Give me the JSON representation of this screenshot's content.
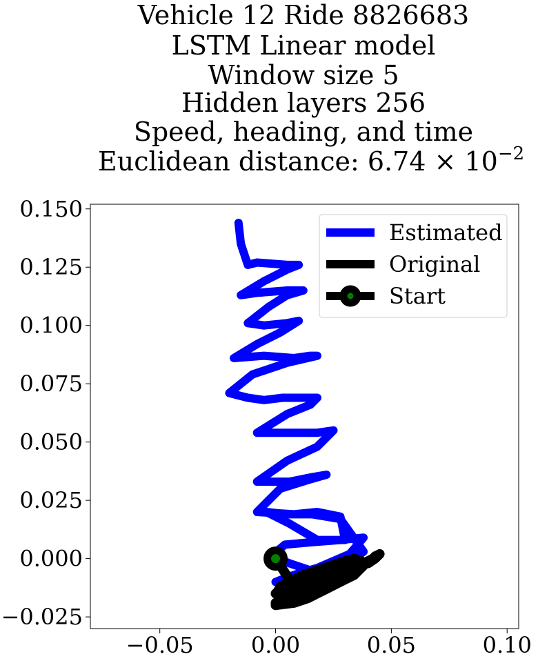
{
  "chart_data": {
    "type": "line",
    "title_lines": [
      "Vehicle 12 Ride 8826683",
      "LSTM Linear model",
      "Window size 5",
      "Hidden layers 256",
      "Speed, heading, and time",
      "Euclidean distance: 6.74 × 10",
      "−2"
    ],
    "xlim": [
      -0.08,
      0.105
    ],
    "ylim": [
      -0.03,
      0.152
    ],
    "x_ticks": [
      -0.05,
      0.0,
      0.05,
      0.1
    ],
    "x_tick_labels": [
      "−0.05",
      "0.00",
      "0.05",
      "0.10"
    ],
    "y_ticks": [
      0.15,
      0.125,
      0.1,
      0.075,
      0.05,
      0.025,
      0.0,
      -0.025
    ],
    "y_tick_labels": [
      "0.150",
      "0.125",
      "0.100",
      "0.075",
      "0.050",
      "0.025",
      "0.000",
      "−0.025"
    ],
    "legend_placement": "top-right",
    "series": [
      {
        "name": "Estimated",
        "color": "#0000ff",
        "x": [
          0.0,
          0.005,
          0.011,
          0.018,
          0.025,
          0.032,
          0.038,
          0.028,
          0.015,
          0.004,
          -0.002,
          0.006,
          0.018,
          0.03,
          0.038,
          0.028,
          0.016,
          0.005,
          -0.004,
          0.006,
          0.018,
          0.03,
          0.028,
          0.018,
          0.008,
          -0.008,
          0.002,
          0.015,
          0.022,
          0.016,
          0.006,
          -0.008,
          0.005,
          0.018,
          0.025,
          0.018,
          0.008,
          -0.008,
          0.005,
          0.015,
          0.018,
          0.012,
          0.003,
          -0.005,
          -0.012,
          -0.02,
          -0.01,
          0.005,
          0.018,
          0.015,
          0.008,
          -0.005,
          -0.018,
          -0.008,
          0.002,
          0.01,
          0.005,
          -0.005,
          -0.012,
          -0.003,
          0.005,
          0.012,
          0.005,
          -0.008,
          -0.015,
          -0.005,
          0.005,
          0.01,
          0.005,
          -0.008,
          -0.012,
          -0.015,
          -0.016
        ],
        "y": [
          -0.01,
          -0.008,
          -0.006,
          -0.004,
          -0.001,
          0.002,
          0.009,
          0.008,
          0.007,
          0.006,
          0.001,
          -0.002,
          -0.006,
          -0.003,
          0.003,
          0.017,
          0.019,
          0.019,
          0.02,
          0.015,
          0.008,
          0.008,
          0.018,
          0.02,
          0.019,
          0.02,
          0.03,
          0.034,
          0.036,
          0.035,
          0.033,
          0.033,
          0.042,
          0.048,
          0.055,
          0.054,
          0.054,
          0.054,
          0.062,
          0.066,
          0.069,
          0.069,
          0.069,
          0.068,
          0.069,
          0.071,
          0.079,
          0.084,
          0.087,
          0.087,
          0.086,
          0.087,
          0.086,
          0.092,
          0.097,
          0.102,
          0.101,
          0.1,
          0.101,
          0.108,
          0.113,
          0.115,
          0.115,
          0.114,
          0.113,
          0.119,
          0.124,
          0.126,
          0.126,
          0.127,
          0.126,
          0.135,
          0.144
        ]
      },
      {
        "name": "Original",
        "color": "#000000",
        "x": [
          0.0,
          0.002,
          0.004,
          0.006,
          0.008,
          0.01,
          0.012,
          0.014,
          0.015,
          0.014,
          0.012,
          0.009,
          0.005,
          0.0,
          0.0,
          0.0,
          0.008,
          0.014,
          0.018,
          0.022,
          0.026,
          0.03,
          0.032,
          0.034,
          0.036,
          0.038,
          0.04,
          0.042,
          0.043,
          0.045,
          0.043,
          0.04,
          0.036,
          0.03,
          0.024,
          0.018,
          0.012,
          0.007,
          0.003,
          0.001,
          0.004,
          0.008,
          0.014,
          0.02,
          0.026,
          0.032,
          0.036,
          0.038,
          0.037,
          0.034,
          0.03,
          0.024,
          0.018,
          0.012,
          0.006,
          0.002,
          0.001,
          0.0,
          0.002,
          0.008,
          0.016,
          0.024,
          0.03,
          0.034,
          0.036,
          0.036,
          0.034,
          0.03,
          0.024,
          0.016,
          0.008,
          0.002
        ],
        "y": [
          0.0,
          -0.003,
          -0.006,
          -0.009,
          -0.011,
          -0.012,
          -0.013,
          -0.014,
          -0.015,
          -0.015,
          -0.016,
          -0.017,
          -0.018,
          -0.019,
          -0.019,
          -0.02,
          -0.019,
          -0.017,
          -0.015,
          -0.013,
          -0.011,
          -0.009,
          -0.008,
          -0.006,
          -0.004,
          -0.002,
          -0.001,
          0.0,
          0.001,
          0.002,
          0.0,
          -0.002,
          -0.003,
          -0.004,
          -0.006,
          -0.008,
          -0.01,
          -0.012,
          -0.014,
          -0.016,
          -0.016,
          -0.015,
          -0.013,
          -0.011,
          -0.009,
          -0.007,
          -0.005,
          -0.003,
          -0.001,
          0.0,
          -0.001,
          -0.003,
          -0.005,
          -0.007,
          -0.01,
          -0.012,
          -0.014,
          -0.015,
          -0.016,
          -0.015,
          -0.013,
          -0.011,
          -0.009,
          -0.007,
          -0.005,
          -0.003,
          -0.002,
          -0.004,
          -0.006,
          -0.009,
          -0.012,
          -0.014
        ]
      },
      {
        "name": "Start",
        "color": "#000000",
        "marker_face_color": "#008000",
        "x": [
          0.0
        ],
        "y": [
          0.0
        ]
      }
    ]
  }
}
